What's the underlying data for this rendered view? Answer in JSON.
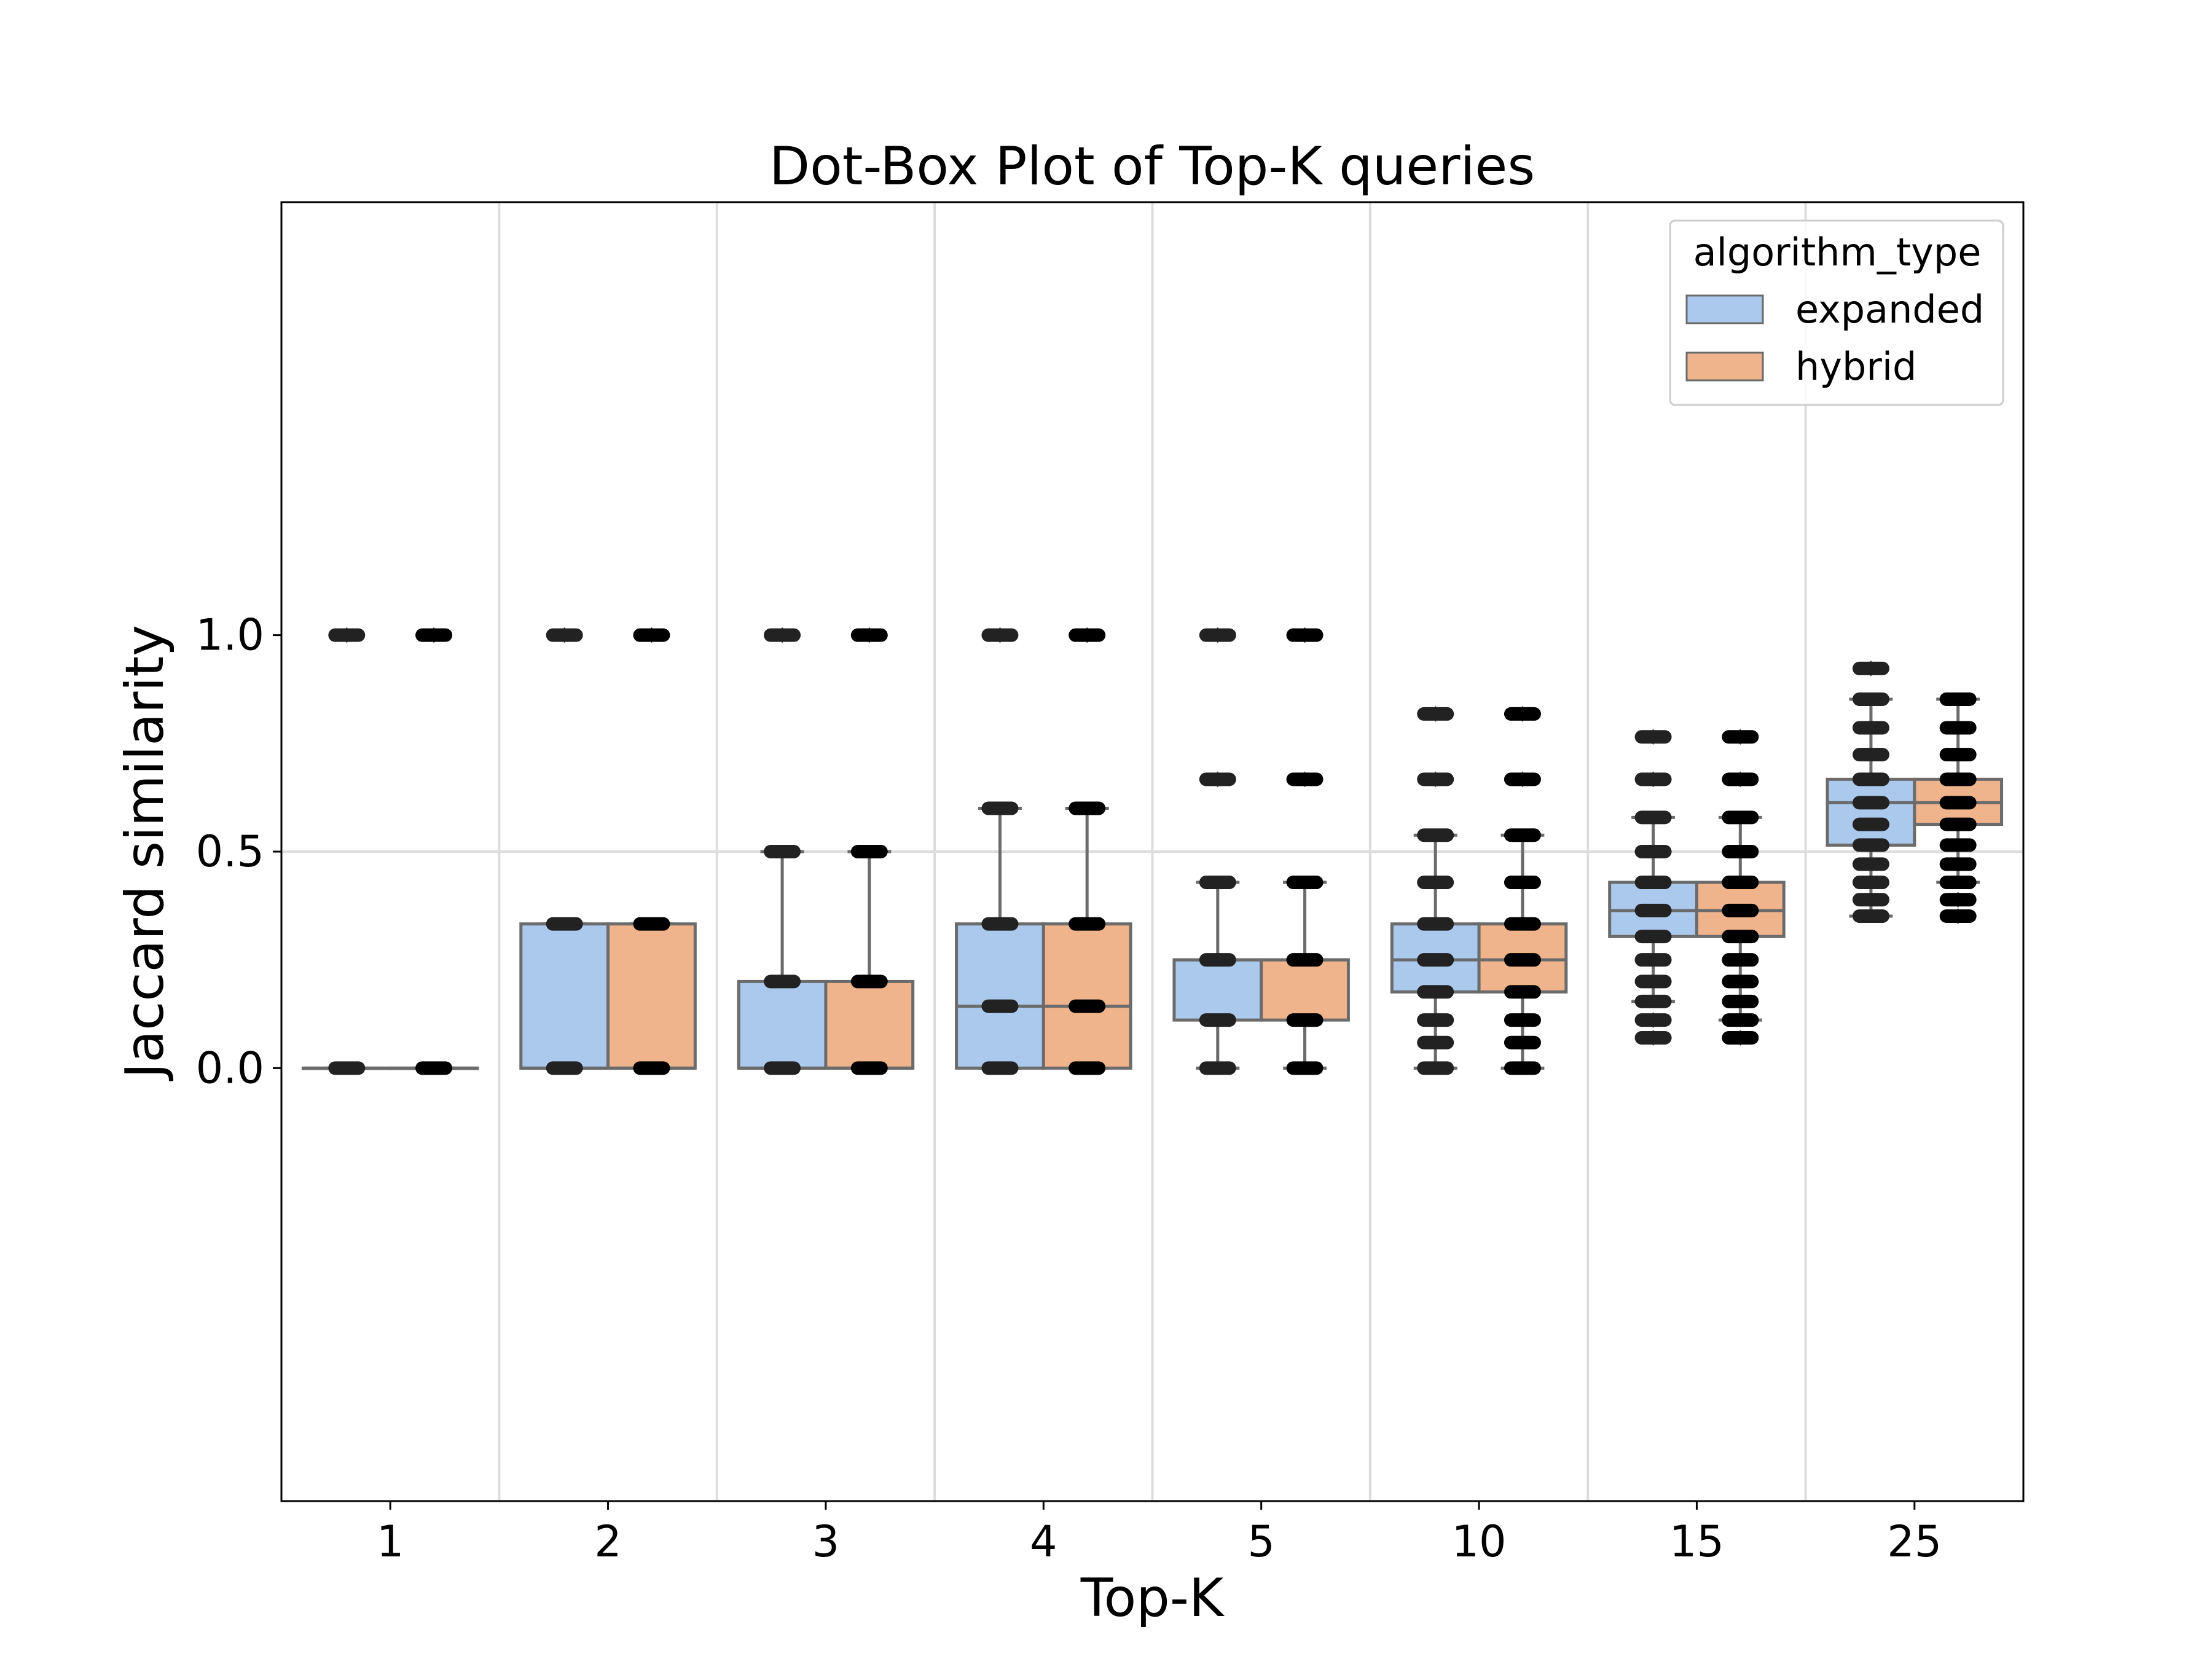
{
  "chart_data": {
    "type": "box",
    "title": "Dot-Box Plot of Top-K queries",
    "xlabel": "Top-K",
    "ylabel": "Jaccard similarity",
    "categories": [
      "1",
      "2",
      "3",
      "4",
      "5",
      "10",
      "15",
      "25"
    ],
    "yticks": [
      0.0,
      0.5,
      1.0
    ],
    "ytick_labels": [
      "0.0",
      "0.5",
      "1.0"
    ],
    "ylim": [
      -1.0,
      2.0
    ],
    "grid": "major lines at 0.5 and category dividers",
    "legend": {
      "title": "algorithm_type",
      "placement": "top-right",
      "entries": [
        "expanded",
        "hybrid"
      ]
    },
    "colors": {
      "expanded": "#aac9ed",
      "hybrid": "#f0b48c",
      "points": "#222222",
      "box_edge": "#6b6b6b",
      "grid": "#dddddd"
    },
    "series": [
      {
        "name": "expanded",
        "boxes": [
          {
            "q1": 0.0,
            "median": 0.0,
            "q3": 0.0,
            "whislo": 0.0,
            "whishi": 0.0,
            "fliers": [
              1.0
            ]
          },
          {
            "q1": 0.0,
            "median": 0.0,
            "q3": 0.333,
            "whislo": 0.0,
            "whishi": 0.333,
            "fliers": [
              1.0
            ]
          },
          {
            "q1": 0.0,
            "median": 0.0,
            "q3": 0.2,
            "whislo": 0.0,
            "whishi": 0.5,
            "fliers": [
              1.0
            ]
          },
          {
            "q1": 0.0,
            "median": 0.143,
            "q3": 0.333,
            "whislo": 0.0,
            "whishi": 0.6,
            "fliers": [
              1.0
            ]
          },
          {
            "q1": 0.111,
            "median": 0.25,
            "q3": 0.25,
            "whislo": 0.0,
            "whishi": 0.429,
            "fliers": [
              0.667,
              1.0
            ]
          },
          {
            "q1": 0.176,
            "median": 0.25,
            "q3": 0.333,
            "whislo": 0.0,
            "whishi": 0.538,
            "fliers": [
              0.667,
              0.818
            ]
          },
          {
            "q1": 0.304,
            "median": 0.364,
            "q3": 0.429,
            "whislo": 0.154,
            "whishi": 0.579,
            "fliers": [
              0.07,
              0.111,
              0.667,
              0.765
            ]
          },
          {
            "q1": 0.515,
            "median": 0.613,
            "q3": 0.667,
            "whislo": 0.351,
            "whishi": 0.852,
            "fliers": [
              0.923
            ]
          }
        ],
        "points": [
          [
            0.0,
            1.0
          ],
          [
            0.0,
            0.333,
            1.0
          ],
          [
            0.0,
            0.2,
            0.5,
            1.0
          ],
          [
            0.0,
            0.143,
            0.333,
            0.6,
            1.0
          ],
          [
            0.0,
            0.111,
            0.25,
            0.429,
            0.667,
            1.0
          ],
          [
            0.0,
            0.059,
            0.111,
            0.176,
            0.25,
            0.333,
            0.429,
            0.538,
            0.667,
            0.818
          ],
          [
            0.07,
            0.111,
            0.154,
            0.2,
            0.25,
            0.304,
            0.364,
            0.429,
            0.5,
            0.579,
            0.667,
            0.765
          ],
          [
            0.351,
            0.389,
            0.429,
            0.471,
            0.515,
            0.563,
            0.613,
            0.667,
            0.724,
            0.786,
            0.852,
            0.923
          ]
        ]
      },
      {
        "name": "hybrid",
        "boxes": [
          {
            "q1": 0.0,
            "median": 0.0,
            "q3": 0.0,
            "whislo": 0.0,
            "whishi": 0.0,
            "fliers": [
              1.0
            ]
          },
          {
            "q1": 0.0,
            "median": 0.0,
            "q3": 0.333,
            "whislo": 0.0,
            "whishi": 0.333,
            "fliers": [
              1.0
            ]
          },
          {
            "q1": 0.0,
            "median": 0.0,
            "q3": 0.2,
            "whislo": 0.0,
            "whishi": 0.5,
            "fliers": [
              1.0
            ]
          },
          {
            "q1": 0.0,
            "median": 0.143,
            "q3": 0.333,
            "whislo": 0.0,
            "whishi": 0.6,
            "fliers": [
              1.0
            ]
          },
          {
            "q1": 0.111,
            "median": 0.25,
            "q3": 0.25,
            "whislo": 0.0,
            "whishi": 0.429,
            "fliers": [
              0.667,
              1.0
            ]
          },
          {
            "q1": 0.176,
            "median": 0.25,
            "q3": 0.333,
            "whislo": 0.0,
            "whishi": 0.538,
            "fliers": [
              0.667,
              0.818
            ]
          },
          {
            "q1": 0.304,
            "median": 0.364,
            "q3": 0.429,
            "whislo": 0.111,
            "whishi": 0.579,
            "fliers": [
              0.07,
              0.667,
              0.765
            ]
          },
          {
            "q1": 0.563,
            "median": 0.613,
            "q3": 0.667,
            "whislo": 0.429,
            "whishi": 0.852,
            "fliers": [
              0.351,
              0.389
            ]
          }
        ],
        "points": [
          [
            0.0,
            1.0
          ],
          [
            0.0,
            0.333,
            1.0
          ],
          [
            0.0,
            0.2,
            0.5,
            1.0
          ],
          [
            0.0,
            0.143,
            0.333,
            0.6,
            1.0
          ],
          [
            0.0,
            0.111,
            0.25,
            0.429,
            0.667,
            1.0
          ],
          [
            0.0,
            0.059,
            0.111,
            0.176,
            0.25,
            0.333,
            0.429,
            0.538,
            0.667,
            0.818
          ],
          [
            0.07,
            0.111,
            0.154,
            0.2,
            0.25,
            0.304,
            0.364,
            0.429,
            0.5,
            0.579,
            0.667,
            0.765
          ],
          [
            0.351,
            0.389,
            0.429,
            0.471,
            0.515,
            0.563,
            0.613,
            0.667,
            0.724,
            0.786,
            0.852
          ]
        ]
      }
    ]
  }
}
